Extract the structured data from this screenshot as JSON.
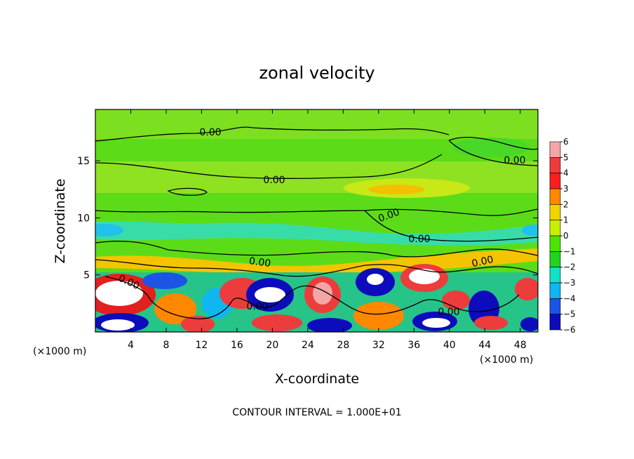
{
  "chart_data": {
    "type": "heatmap",
    "title": "zonal velocity",
    "xlabel": "X-coordinate",
    "ylabel": "Z-coordinate",
    "x_unit": "(×1000 m)",
    "y_unit": "(×1000 m)",
    "xlim": [
      0,
      50
    ],
    "ylim": [
      0,
      19.5
    ],
    "x_ticks": [
      "4",
      "8",
      "12",
      "16",
      "20",
      "24",
      "28",
      "32",
      "36",
      "40",
      "44",
      "48"
    ],
    "y_ticks": [
      "5",
      "10",
      "15"
    ],
    "colorbar": {
      "min": -6,
      "max": 6,
      "labels": [
        "6",
        "5",
        "4",
        "3",
        "2",
        "1",
        "0",
        "−1",
        "−2",
        "−3",
        "−4",
        "−5",
        "−6"
      ],
      "colors": [
        "#f4a6a6",
        "#ec3c3c",
        "#fc1e1e",
        "#ff8800",
        "#f2d400",
        "#c8f000",
        "#4ce400",
        "#1fd41f",
        "#10e2c6",
        "#10b6f0",
        "#1c54e6",
        "#0c0cbc",
        "#7a0ea8"
      ]
    },
    "contour_label": "0.00",
    "contour_interval": 10,
    "note": "CONTOUR INTERVAL = 1.000E+01"
  }
}
